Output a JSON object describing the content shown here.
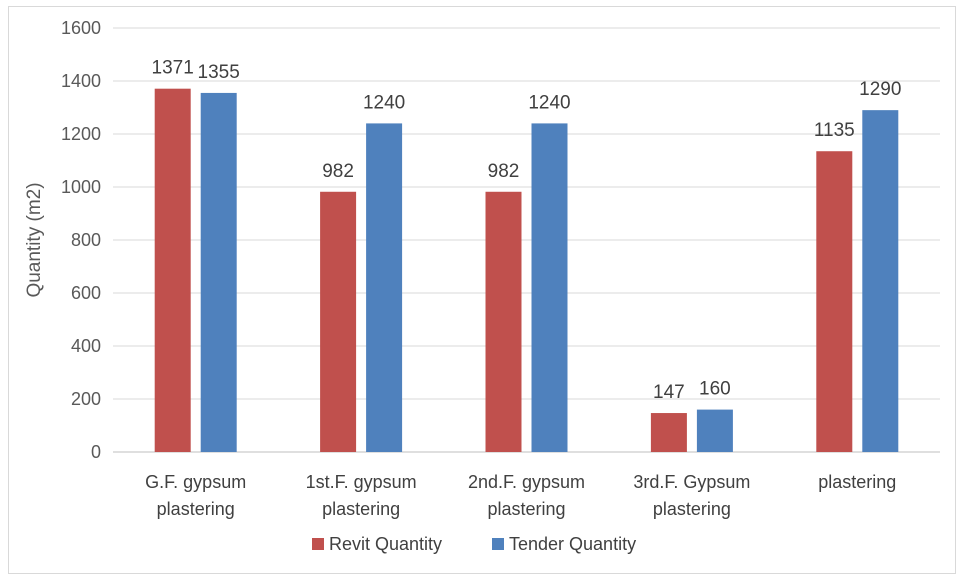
{
  "chart_data": {
    "type": "bar",
    "categories": [
      [
        "G.F. gypsum",
        "plastering"
      ],
      [
        "1st.F. gypsum",
        "plastering"
      ],
      [
        "2nd.F. gypsum",
        "plastering"
      ],
      [
        "3rd.F. Gypsum",
        "plastering"
      ],
      [
        "plastering"
      ]
    ],
    "series": [
      {
        "name": "Revit Quantity",
        "color": "#C0504D",
        "values": [
          1371,
          982,
          982,
          147,
          1135
        ]
      },
      {
        "name": "Tender Quantity",
        "color": "#4F81BD",
        "values": [
          1355,
          1240,
          1240,
          160,
          1290
        ]
      }
    ],
    "ylabel": "Quantity (m2)",
    "ylim": [
      0,
      1600
    ],
    "yticks": [
      0,
      200,
      400,
      600,
      800,
      1000,
      1200,
      1400,
      1600
    ],
    "grid": true,
    "legend": "bottom"
  }
}
